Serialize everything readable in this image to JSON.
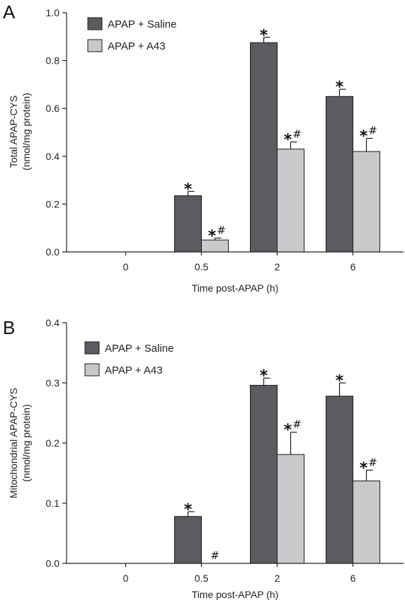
{
  "colors": {
    "saline": "#5b5c62",
    "a43": "#c8c9cb",
    "axis": "#222222"
  },
  "chart_data": [
    {
      "type": "bar",
      "panel": "A",
      "categories": [
        "0",
        "0.5",
        "2",
        "6"
      ],
      "xlabel": "Time post-APAP (h)",
      "ylabel": [
        "Total APAP-CYS",
        "(nmol/mg protein)"
      ],
      "ylim": [
        0,
        1.0
      ],
      "yticks": [
        "0.0",
        "0.2",
        "0.4",
        "0.6",
        "0.8",
        "1.0"
      ],
      "legend_position": "top-left",
      "grid": false,
      "series": [
        {
          "name": "APAP + Saline",
          "values": [
            0,
            0.235,
            0.875,
            0.65
          ],
          "errors": [
            0,
            0.018,
            0.022,
            0.03
          ],
          "marks": [
            "",
            "*",
            "*",
            "*"
          ]
        },
        {
          "name": "APAP + A43",
          "values": [
            0,
            0.05,
            0.43,
            0.42
          ],
          "errors": [
            0,
            0.008,
            0.03,
            0.055
          ],
          "marks": [
            "",
            "* #",
            "* #",
            "* #"
          ]
        }
      ]
    },
    {
      "type": "bar",
      "panel": "B",
      "categories": [
        "0",
        "0.5",
        "2",
        "6"
      ],
      "xlabel": "Time post-APAP (h)",
      "ylabel": [
        "Mitochondrial APAP-CYS",
        "(nmol/mg protein)"
      ],
      "ylim": [
        0,
        0.4
      ],
      "yticks": [
        "0.0",
        "0.1",
        "0.2",
        "0.3",
        "0.4"
      ],
      "legend_position": "top-left",
      "grid": false,
      "series": [
        {
          "name": "APAP + Saline",
          "values": [
            0,
            0.078,
            0.296,
            0.278
          ],
          "errors": [
            0,
            0.008,
            0.012,
            0.022
          ],
          "marks": [
            "",
            "*",
            "*",
            "*"
          ]
        },
        {
          "name": "APAP + A43",
          "values": [
            0,
            0,
            0.181,
            0.137
          ],
          "errors": [
            0,
            0,
            0.037,
            0.018
          ],
          "marks": [
            "",
            "#",
            "* #",
            "* #"
          ]
        }
      ]
    }
  ]
}
